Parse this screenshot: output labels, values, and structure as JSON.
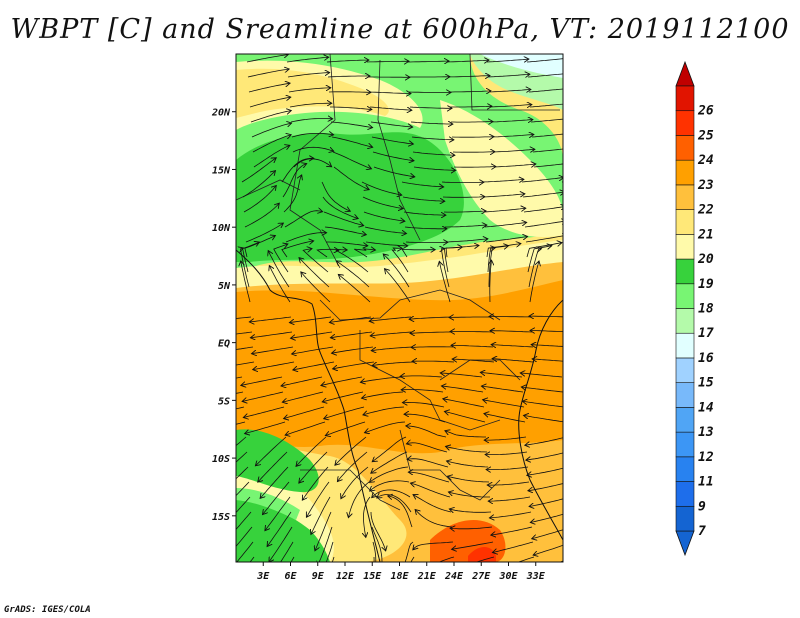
{
  "title": "WBPT [C] and Sreamline at 600hPa, VT: 2019112100",
  "credit": "GrADS: IGES/COLA",
  "map": {
    "lon_range": [
      0,
      36
    ],
    "lat_range": [
      -19,
      25
    ],
    "lat_ticks": [
      {
        "value": 20,
        "label": "20N"
      },
      {
        "value": 15,
        "label": "15N"
      },
      {
        "value": 10,
        "label": "10N"
      },
      {
        "value": 5,
        "label": "5N"
      },
      {
        "value": 0,
        "label": "EQ"
      },
      {
        "value": -5,
        "label": "5S"
      },
      {
        "value": -10,
        "label": "10S"
      },
      {
        "value": -15,
        "label": "15S"
      }
    ],
    "lon_ticks": [
      {
        "value": 3,
        "label": "3E"
      },
      {
        "value": 6,
        "label": "6E"
      },
      {
        "value": 9,
        "label": "9E"
      },
      {
        "value": 12,
        "label": "12E"
      },
      {
        "value": 15,
        "label": "15E"
      },
      {
        "value": 18,
        "label": "18E"
      },
      {
        "value": 21,
        "label": "21E"
      },
      {
        "value": 24,
        "label": "24E"
      },
      {
        "value": 27,
        "label": "27E"
      },
      {
        "value": 30,
        "label": "30E"
      },
      {
        "value": 33,
        "label": "33E"
      }
    ]
  },
  "colorbar": {
    "levels": [
      {
        "label": "7",
        "color": "#1464d2"
      },
      {
        "label": "9",
        "color": "#1e6eeb"
      },
      {
        "label": "11",
        "color": "#2882f0"
      },
      {
        "label": "12",
        "color": "#3c96f5"
      },
      {
        "label": "13",
        "color": "#50a5f5"
      },
      {
        "label": "14",
        "color": "#78b9fa"
      },
      {
        "label": "15",
        "color": "#a0d2ff"
      },
      {
        "label": "16",
        "color": "#e1ffff"
      },
      {
        "label": "17",
        "color": "#b4faaa"
      },
      {
        "label": "18",
        "color": "#78f573"
      },
      {
        "label": "19",
        "color": "#37d23c"
      },
      {
        "label": "20",
        "color": "#fffaaa"
      },
      {
        "label": "21",
        "color": "#ffe878"
      },
      {
        "label": "22",
        "color": "#ffc03c"
      },
      {
        "label": "23",
        "color": "#ffa000"
      },
      {
        "label": "24",
        "color": "#ff6000"
      },
      {
        "label": "25",
        "color": "#ff3200"
      },
      {
        "label": "26",
        "color": "#e11400"
      }
    ],
    "top_color": "#c00000"
  }
}
